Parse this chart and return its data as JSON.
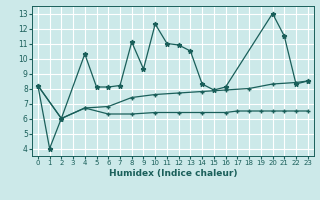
{
  "title": "",
  "xlabel": "Humidex (Indice chaleur)",
  "ylabel": "",
  "xlim": [
    -0.5,
    23.5
  ],
  "ylim": [
    3.5,
    13.5
  ],
  "xticks": [
    0,
    1,
    2,
    3,
    4,
    5,
    6,
    7,
    8,
    9,
    10,
    11,
    12,
    13,
    14,
    15,
    16,
    17,
    18,
    19,
    20,
    21,
    22,
    23
  ],
  "yticks": [
    4,
    5,
    6,
    7,
    8,
    9,
    10,
    11,
    12,
    13
  ],
  "bg_color": "#cce9e9",
  "line_color": "#1a5f5a",
  "grid_color": "#ffffff",
  "series1_x": [
    0,
    1,
    2,
    4,
    5,
    6,
    7,
    8,
    9,
    10,
    11,
    12,
    13,
    14,
    15,
    16,
    20,
    21,
    22,
    23
  ],
  "series1_y": [
    8.2,
    4.0,
    6.0,
    10.3,
    8.1,
    8.1,
    8.2,
    11.1,
    9.3,
    12.3,
    11.0,
    10.9,
    10.5,
    8.3,
    7.9,
    8.1,
    13.0,
    11.5,
    8.3,
    8.5
  ],
  "series2_x": [
    0,
    2,
    4,
    6,
    8,
    10,
    12,
    14,
    16,
    18,
    20,
    22,
    23
  ],
  "series2_y": [
    8.2,
    6.0,
    6.7,
    6.8,
    7.4,
    7.6,
    7.7,
    7.8,
    7.9,
    8.0,
    8.3,
    8.4,
    8.5
  ],
  "series3_x": [
    0,
    2,
    4,
    6,
    8,
    10,
    12,
    14,
    16,
    17,
    18,
    19,
    20,
    21,
    22,
    23
  ],
  "series3_y": [
    8.2,
    6.0,
    6.7,
    6.3,
    6.3,
    6.4,
    6.4,
    6.4,
    6.4,
    6.5,
    6.5,
    6.5,
    6.5,
    6.5,
    6.5,
    6.5
  ]
}
